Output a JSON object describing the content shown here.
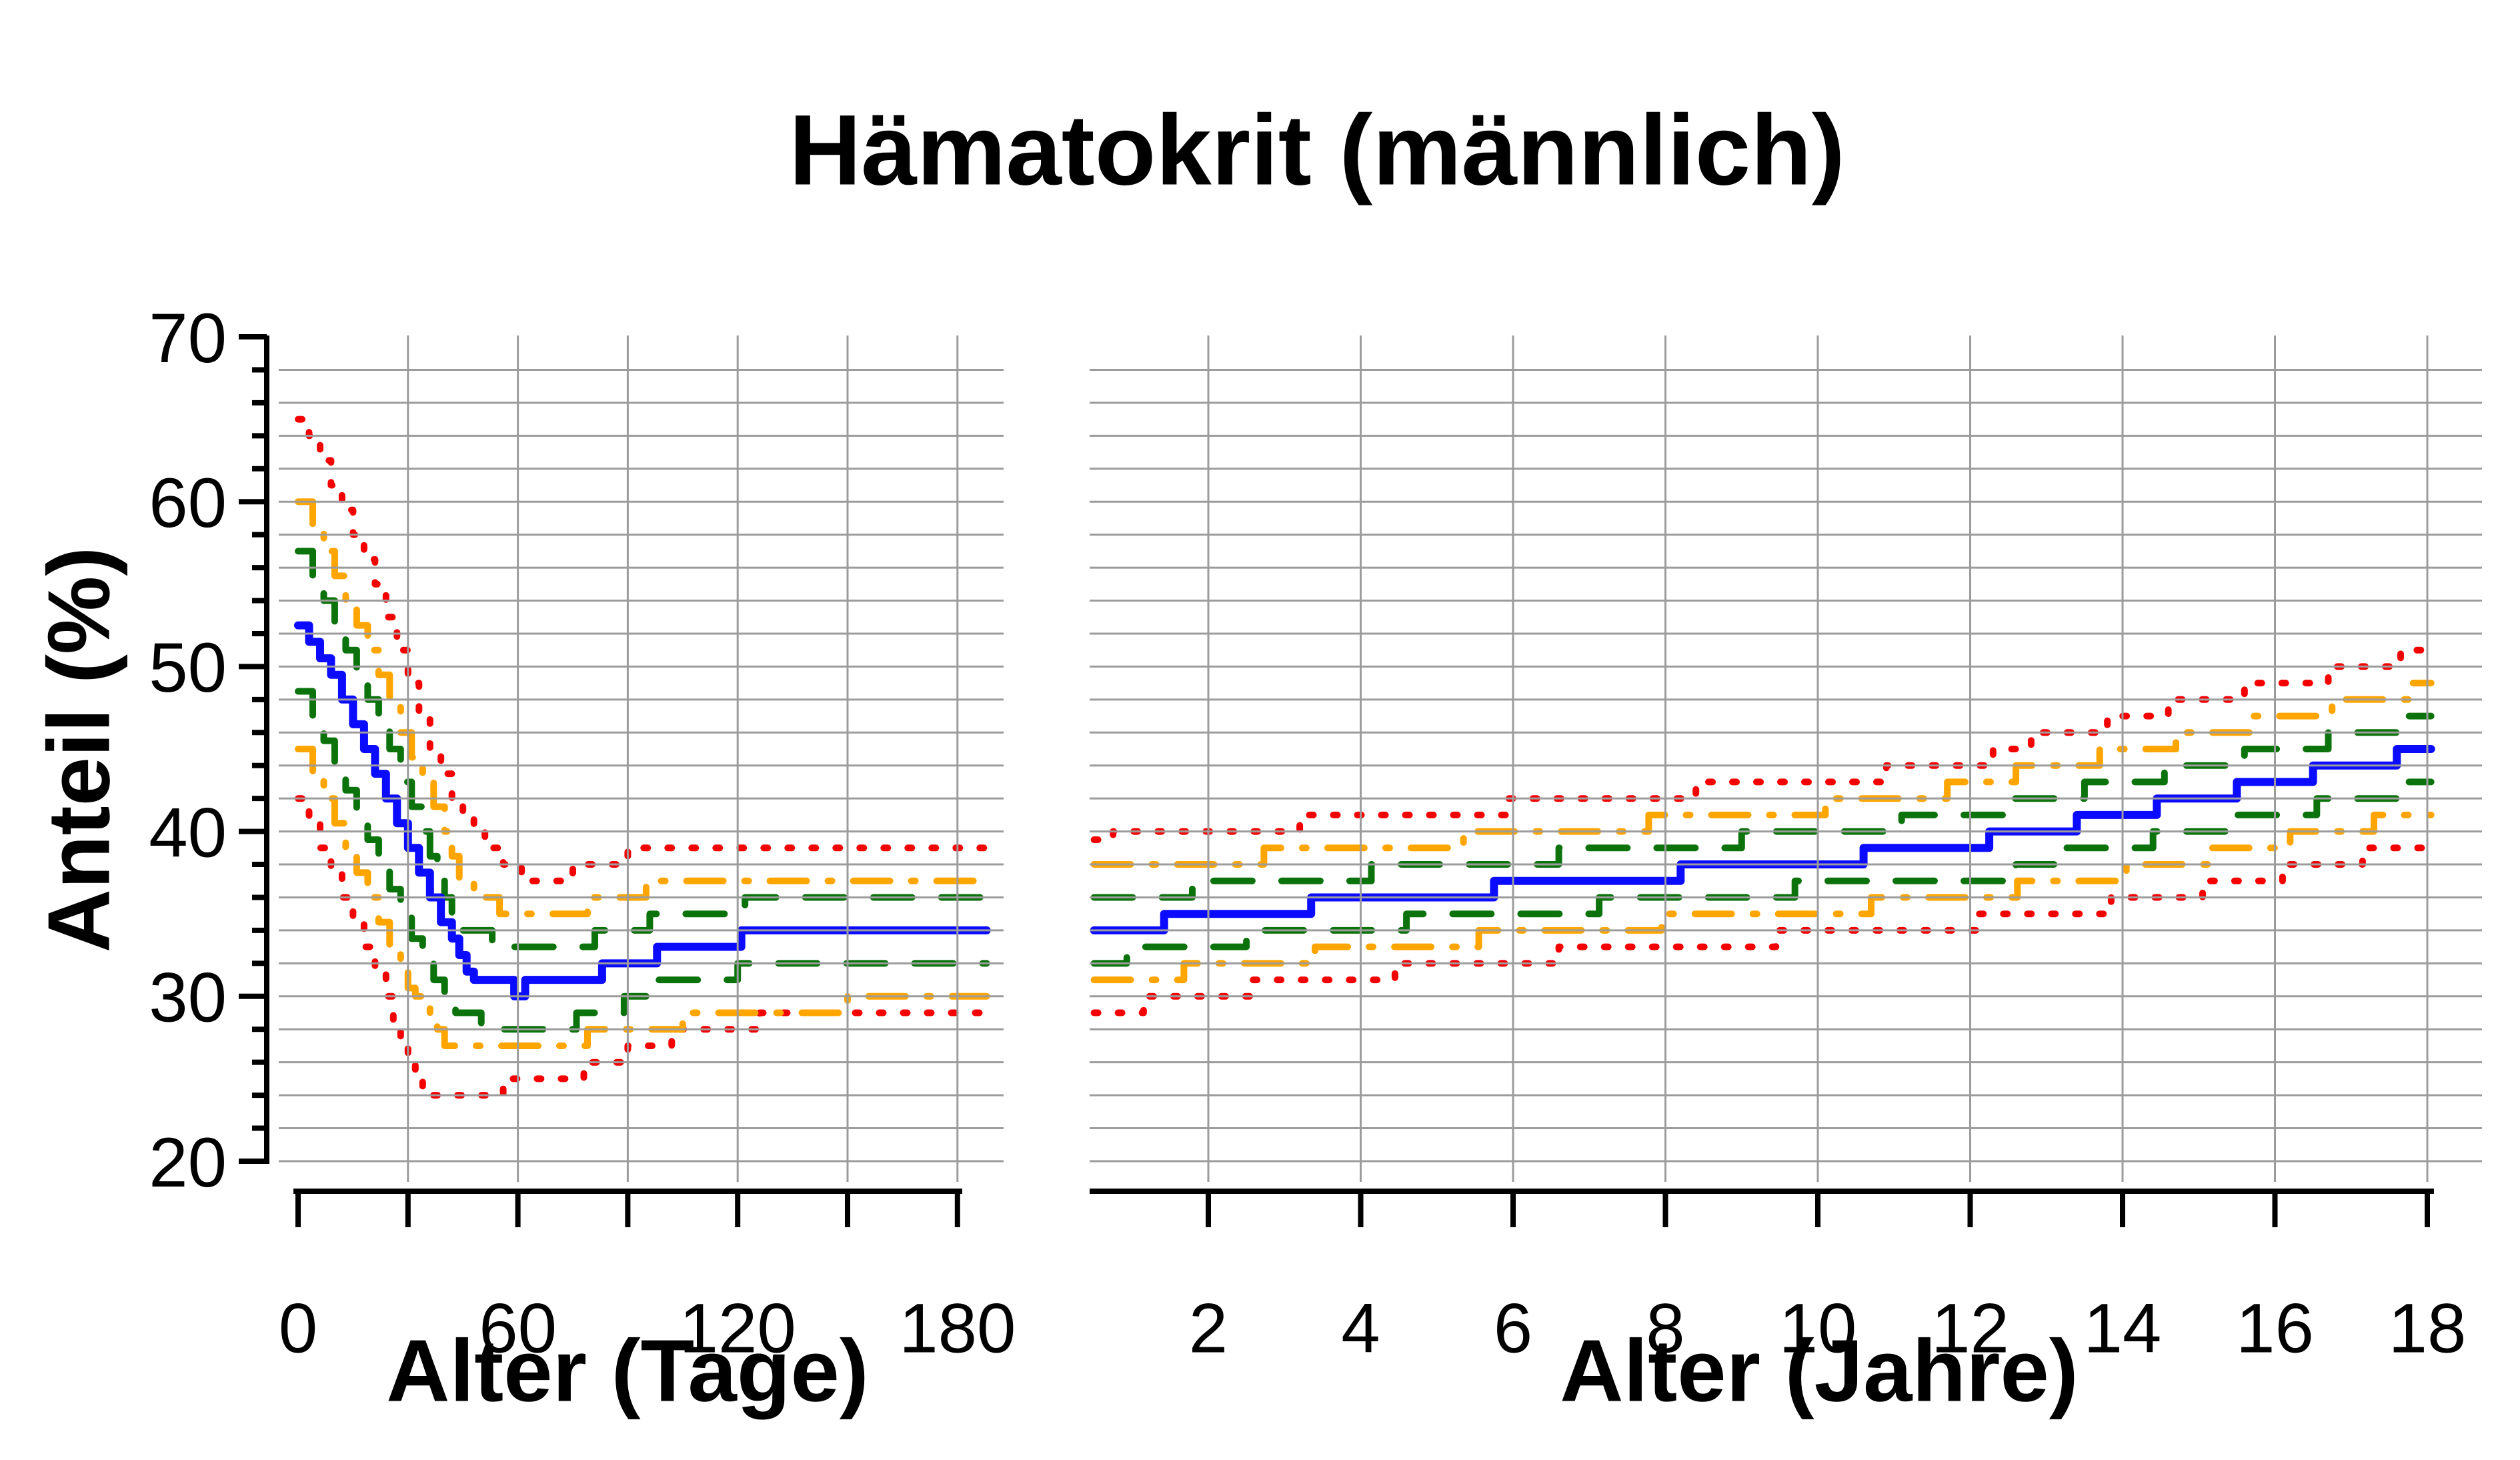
{
  "title": "Hämatokrit (männlich)",
  "y_axis": {
    "label": "Anteil (%)",
    "min": 20,
    "max": 70,
    "major_ticks": [
      20,
      30,
      40,
      50,
      60,
      70
    ],
    "minor_tick_step": 2,
    "grid_step": 2
  },
  "colors": {
    "red": "#F40000",
    "orange": "#FFA500",
    "green": "#0C730C",
    "blue": "#0B0BFF",
    "grid": "#9C9C9C",
    "axis": "#000000"
  },
  "dash_styles": {
    "dotted": "6 30",
    "dashdot": "55 32 6 32",
    "dashed": "58 44",
    "solid": ""
  },
  "chart_data": [
    {
      "type": "line",
      "panel": "left",
      "xlabel": "Alter (Tage)",
      "xlim": [
        0,
        188
      ],
      "xticks": [
        0,
        30,
        60,
        90,
        120,
        150,
        180
      ],
      "xtick_label_values": [
        0,
        60,
        120,
        180
      ],
      "xtick_labels": [
        "0",
        "60",
        "120",
        "180"
      ],
      "grid_x": [
        30,
        60,
        90,
        120,
        150,
        180
      ],
      "ylim": [
        20,
        70
      ],
      "series": [
        {
          "id": "upper-red-dotted",
          "color": "red",
          "dash": "dotted",
          "steps": [
            [
              0,
              65
            ],
            [
              3,
              64
            ],
            [
              6,
              62.5
            ],
            [
              9,
              61
            ],
            [
              12,
              59.5
            ],
            [
              15,
              58
            ],
            [
              18,
              56.5
            ],
            [
              21,
              55
            ],
            [
              24,
              53
            ],
            [
              27,
              51
            ],
            [
              30,
              49
            ],
            [
              33,
              47
            ],
            [
              36,
              45
            ],
            [
              39,
              43.5
            ],
            [
              42,
              42
            ],
            [
              45,
              41
            ],
            [
              48,
              40
            ],
            [
              51,
              39
            ],
            [
              56,
              38
            ],
            [
              61,
              37
            ],
            [
              75,
              38
            ],
            [
              90,
              39
            ]
          ]
        },
        {
          "id": "lower-red-dotted",
          "color": "red",
          "dash": "dotted",
          "steps": [
            [
              0,
              42
            ],
            [
              3,
              40.5
            ],
            [
              6,
              39
            ],
            [
              9,
              37.5
            ],
            [
              12,
              36
            ],
            [
              15,
              34.5
            ],
            [
              18,
              33
            ],
            [
              21,
              31.5
            ],
            [
              24,
              30
            ],
            [
              26,
              28.5
            ],
            [
              28,
              27
            ],
            [
              30,
              26
            ],
            [
              32,
              25
            ],
            [
              34,
              24
            ],
            [
              56,
              25
            ],
            [
              78,
              26
            ],
            [
              90,
              27
            ],
            [
              102,
              28
            ],
            [
              126,
              29
            ]
          ]
        },
        {
          "id": "upper-orange-dashdot",
          "color": "orange",
          "dash": "dashdot",
          "steps": [
            [
              0,
              60
            ],
            [
              4,
              58.5
            ],
            [
              7,
              57
            ],
            [
              10,
              55.5
            ],
            [
              13,
              54
            ],
            [
              16,
              52.5
            ],
            [
              19,
              51
            ],
            [
              22,
              49.5
            ],
            [
              25,
              48
            ],
            [
              28,
              46
            ],
            [
              31,
              44.5
            ],
            [
              34,
              43
            ],
            [
              37,
              41.5
            ],
            [
              40,
              40
            ],
            [
              42,
              38.5
            ],
            [
              44,
              37
            ],
            [
              48,
              36
            ],
            [
              55,
              35
            ],
            [
              79,
              36
            ],
            [
              95,
              37
            ]
          ]
        },
        {
          "id": "lower-orange-dashdot",
          "color": "orange",
          "dash": "dashdot",
          "steps": [
            [
              0,
              45
            ],
            [
              4,
              43.5
            ],
            [
              7,
              42
            ],
            [
              10,
              40.5
            ],
            [
              13,
              39
            ],
            [
              16,
              37.5
            ],
            [
              19,
              36
            ],
            [
              22,
              34.5
            ],
            [
              25,
              33
            ],
            [
              28,
              31.5
            ],
            [
              30,
              30.5
            ],
            [
              32,
              30
            ],
            [
              34,
              29.5
            ],
            [
              36,
              29
            ],
            [
              38,
              28
            ],
            [
              40,
              27
            ],
            [
              79,
              28
            ],
            [
              105,
              29
            ],
            [
              150,
              30
            ]
          ]
        },
        {
          "id": "upper-green-dashed",
          "color": "green",
          "dash": "dashed",
          "steps": [
            [
              0,
              57
            ],
            [
              4,
              55.5
            ],
            [
              7,
              54
            ],
            [
              10,
              52.5
            ],
            [
              13,
              51
            ],
            [
              16,
              49.5
            ],
            [
              19,
              48
            ],
            [
              22,
              46.5
            ],
            [
              25,
              45
            ],
            [
              28,
              43
            ],
            [
              31,
              41.5
            ],
            [
              34,
              40
            ],
            [
              36,
              38.5
            ],
            [
              38,
              37
            ],
            [
              40,
              36
            ],
            [
              42,
              35
            ],
            [
              44,
              34
            ],
            [
              53,
              33
            ],
            [
              81,
              34
            ],
            [
              96,
              35
            ],
            [
              122,
              36
            ]
          ]
        },
        {
          "id": "lower-green-dashed",
          "color": "green",
          "dash": "dashed",
          "steps": [
            [
              0,
              48.5
            ],
            [
              4,
              47
            ],
            [
              7,
              45.5
            ],
            [
              10,
              44
            ],
            [
              13,
              42.5
            ],
            [
              16,
              41
            ],
            [
              19,
              39.5
            ],
            [
              22,
              38
            ],
            [
              25,
              36.5
            ],
            [
              28,
              35
            ],
            [
              31,
              33.5
            ],
            [
              34,
              32
            ],
            [
              37,
              31
            ],
            [
              40,
              30
            ],
            [
              43,
              29
            ],
            [
              50,
              28
            ],
            [
              76,
              29
            ],
            [
              89,
              30
            ],
            [
              98,
              31
            ],
            [
              120,
              32
            ]
          ]
        },
        {
          "id": "median-blue-solid",
          "color": "blue",
          "dash": "solid",
          "steps": [
            [
              0,
              52.5
            ],
            [
              3,
              51.5
            ],
            [
              6,
              50.5
            ],
            [
              9,
              49.5
            ],
            [
              12,
              48
            ],
            [
              15,
              46.5
            ],
            [
              18,
              45
            ],
            [
              21,
              43.5
            ],
            [
              24,
              42
            ],
            [
              27,
              40.5
            ],
            [
              30,
              39
            ],
            [
              33,
              37.5
            ],
            [
              36,
              36
            ],
            [
              39,
              34.5
            ],
            [
              42,
              33.5
            ],
            [
              44,
              32.5
            ],
            [
              46,
              31.5
            ],
            [
              48,
              31
            ],
            [
              59,
              30
            ],
            [
              62,
              31
            ],
            [
              83,
              32
            ],
            [
              98,
              33
            ],
            [
              121,
              34
            ]
          ]
        }
      ]
    },
    {
      "type": "line",
      "panel": "right",
      "xlabel": "Alter (Jahre)",
      "xlim": [
        0.5,
        18.05
      ],
      "xticks": [
        2,
        4,
        6,
        8,
        10,
        12,
        14,
        16,
        18
      ],
      "xtick_label_values": [
        2,
        4,
        6,
        8,
        10,
        12,
        14,
        16,
        18
      ],
      "xtick_labels": [
        "2",
        "4",
        "6",
        "8",
        "10",
        "12",
        "14",
        "16",
        "18"
      ],
      "grid_x": [
        2,
        4,
        6,
        8,
        10,
        12,
        14,
        16,
        18
      ],
      "ylim": [
        20,
        70
      ],
      "series": [
        {
          "id": "upper-red-dotted",
          "color": "red",
          "dash": "dotted",
          "steps": [
            [
              0.5,
              39.5
            ],
            [
              0.75,
              40
            ],
            [
              3.2,
              41
            ],
            [
              5.9,
              42
            ],
            [
              8.4,
              43
            ],
            [
              10.9,
              44
            ],
            [
              12.3,
              45
            ],
            [
              12.8,
              46
            ],
            [
              13.8,
              47
            ],
            [
              14.6,
              48
            ],
            [
              15.6,
              49
            ],
            [
              16.7,
              50
            ],
            [
              17.65,
              51
            ]
          ]
        },
        {
          "id": "lower-red-dotted",
          "color": "red",
          "dash": "dotted",
          "steps": [
            [
              0.5,
              29
            ],
            [
              1.15,
              30
            ],
            [
              2.56,
              31
            ],
            [
              4.45,
              32
            ],
            [
              6.6,
              33
            ],
            [
              9.45,
              34
            ],
            [
              12.1,
              35
            ],
            [
              13.85,
              36
            ],
            [
              15.05,
              37
            ],
            [
              16.1,
              38
            ],
            [
              17.15,
              39
            ]
          ]
        },
        {
          "id": "upper-orange-dashdot",
          "color": "orange",
          "dash": "dashdot",
          "steps": [
            [
              0.5,
              38
            ],
            [
              2.73,
              39
            ],
            [
              5.35,
              40
            ],
            [
              7.78,
              41
            ],
            [
              10.1,
              42
            ],
            [
              11.7,
              43
            ],
            [
              12.6,
              44
            ],
            [
              13.7,
              45
            ],
            [
              14.7,
              46
            ],
            [
              15.7,
              47
            ],
            [
              16.75,
              48
            ],
            [
              17.8,
              49
            ]
          ]
        },
        {
          "id": "lower-orange-dashdot",
          "color": "orange",
          "dash": "dashdot",
          "steps": [
            [
              0.5,
              31
            ],
            [
              1.68,
              32
            ],
            [
              3.4,
              33
            ],
            [
              5.55,
              34
            ],
            [
              7.95,
              35
            ],
            [
              10.7,
              36
            ],
            [
              12.62,
              37
            ],
            [
              14.05,
              38
            ],
            [
              15.15,
              39
            ],
            [
              16.2,
              40
            ],
            [
              17.3,
              41
            ]
          ]
        },
        {
          "id": "upper-green-dashed",
          "color": "green",
          "dash": "dashed",
          "steps": [
            [
              0.5,
              36
            ],
            [
              1.79,
              37
            ],
            [
              4.14,
              38
            ],
            [
              6.6,
              39
            ],
            [
              9.0,
              40
            ],
            [
              11.1,
              41
            ],
            [
              12.45,
              42
            ],
            [
              13.5,
              43
            ],
            [
              14.55,
              44
            ],
            [
              15.6,
              45
            ],
            [
              16.7,
              46
            ],
            [
              17.7,
              47
            ]
          ]
        },
        {
          "id": "lower-green-dashed",
          "color": "green",
          "dash": "dashed",
          "steps": [
            [
              0.5,
              32
            ],
            [
              0.93,
              33
            ],
            [
              2.5,
              34
            ],
            [
              4.6,
              35
            ],
            [
              7.13,
              36
            ],
            [
              9.7,
              37
            ],
            [
              12.6,
              38
            ],
            [
              13.25,
              39
            ],
            [
              14.4,
              40
            ],
            [
              15.4,
              41
            ],
            [
              16.55,
              42
            ],
            [
              17.7,
              43
            ]
          ]
        },
        {
          "id": "median-blue-solid",
          "color": "blue",
          "dash": "solid",
          "steps": [
            [
              0.5,
              34
            ],
            [
              1.42,
              35
            ],
            [
              3.35,
              36
            ],
            [
              5.75,
              37
            ],
            [
              8.2,
              38
            ],
            [
              10.6,
              39
            ],
            [
              12.25,
              40
            ],
            [
              13.4,
              41
            ],
            [
              14.45,
              42
            ],
            [
              15.5,
              43
            ],
            [
              16.5,
              44
            ],
            [
              17.6,
              45
            ]
          ]
        }
      ]
    }
  ]
}
